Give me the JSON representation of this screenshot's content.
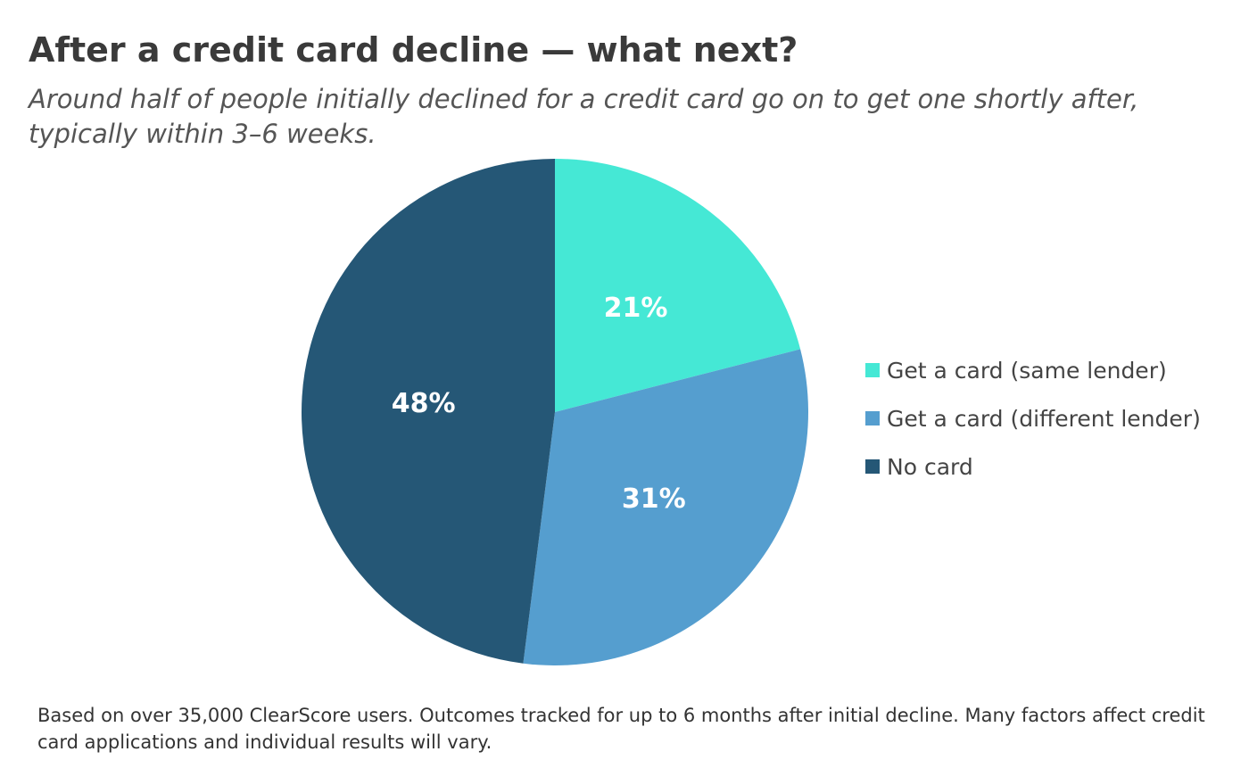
{
  "chart_data": {
    "type": "pie",
    "title": "After a credit card decline — what next?",
    "subtitle": "Around half of people initially declined for a credit card go on to get one shortly after, typically within 3–6 weeks.",
    "slices": [
      {
        "name": "Get a card (same lender)",
        "value": 21,
        "label": "21%",
        "color": "#45e8d5"
      },
      {
        "name": "Get a card (different lender)",
        "value": 31,
        "label": "31%",
        "color": "#559ecf"
      },
      {
        "name": "No card",
        "value": 48,
        "label": "48%",
        "color": "#255776"
      }
    ],
    "legend_placement": "right",
    "footnote": "Based on over 35,000 ClearScore users. Outcomes tracked for up to 6 months after initial decline. Many factors affect credit card applications and individual results will vary."
  }
}
